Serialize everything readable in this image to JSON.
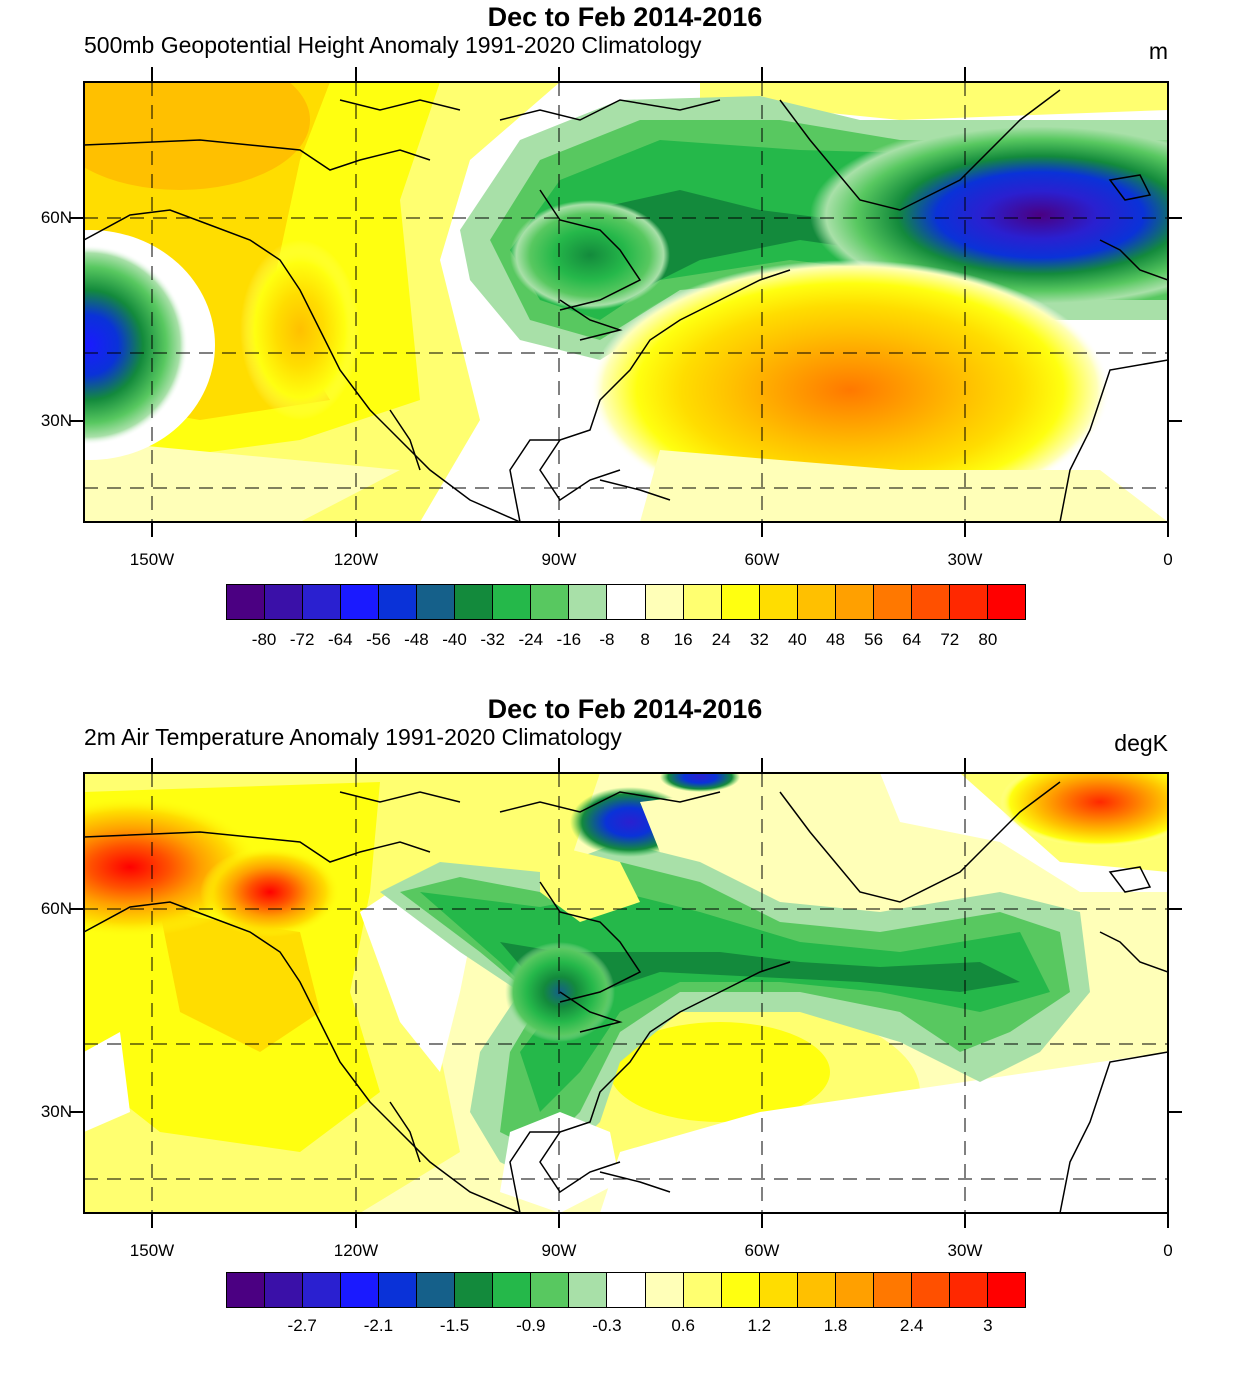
{
  "colors": {
    "scale": [
      "#4b0082",
      "#3a10a8",
      "#2a20d0",
      "#1a1aff",
      "#0a32d8",
      "#15608a",
      "#138a3c",
      "#25b84a",
      "#58c860",
      "#a8e0a8",
      "#ffffff",
      "#ffffb8",
      "#ffff70",
      "#ffff10",
      "#ffdd00",
      "#ffc000",
      "#ffa000",
      "#ff7800",
      "#ff5000",
      "#ff2800",
      "#ff0000"
    ],
    "land_outline": "#000000"
  },
  "longitude_labels": [
    "150W",
    "120W",
    "90W",
    "60W",
    "30W",
    "0"
  ],
  "latitude_labels": [
    "60N",
    "30N"
  ],
  "top_panel": {
    "title": "Dec to Feb 2014-2016",
    "subtitle": "500mb Geopotential Height Anomaly  1991-2020 Climatology",
    "units": "m",
    "colorbar_labels": [
      "-80",
      "-72",
      "-64",
      "-56",
      "-48",
      "-40",
      "-32",
      "-24",
      "-16",
      "-8",
      "8",
      "16",
      "24",
      "32",
      "40",
      "48",
      "56",
      "64",
      "72",
      "80"
    ]
  },
  "bottom_panel": {
    "title": "Dec to Feb 2014-2016",
    "subtitle": "2m Air Temperature Anomaly  1991-2020 Climatology",
    "units": "degK",
    "colorbar_labels": [
      "-2.7",
      "-2.1",
      "-1.5",
      "-0.9",
      "-0.3",
      "0.6",
      "1.2",
      "1.8",
      "2.4",
      "3"
    ]
  }
}
